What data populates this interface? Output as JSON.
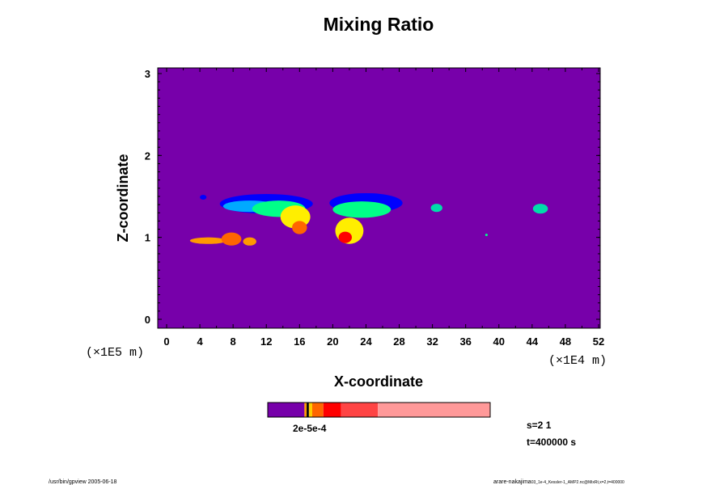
{
  "chart_data": {
    "type": "heatmap",
    "title": "Mixing Ratio",
    "xlabel": "X-coordinate",
    "ylabel": "Z-coordinate",
    "x_unit": "(×1E4 m)",
    "y_unit": "(×1E5 m)",
    "xlim": [
      0,
      52
    ],
    "ylim": [
      0,
      3
    ],
    "x_ticks": [
      "0",
      "4",
      "8",
      "12",
      "16",
      "20",
      "24",
      "28",
      "32",
      "36",
      "40",
      "44",
      "48",
      "52"
    ],
    "y_ticks": [
      "0",
      "1",
      "2",
      "3"
    ],
    "background_color": "#7700aa",
    "colorbar": {
      "label": "2e-5e-4",
      "segments": [
        {
          "from": 0,
          "to": 0.165,
          "color": "#7700aa"
        },
        {
          "from": 0.165,
          "to": 0.175,
          "color": "#ff9900"
        },
        {
          "from": 0.175,
          "to": 0.185,
          "color": "#000000"
        },
        {
          "from": 0.185,
          "to": 0.2,
          "color": "#ffcc00"
        },
        {
          "from": 0.2,
          "to": 0.25,
          "color": "#ff6600"
        },
        {
          "from": 0.25,
          "to": 0.33,
          "color": "#ff0000"
        },
        {
          "from": 0.33,
          "to": 0.495,
          "color": "#ff4444"
        },
        {
          "from": 0.495,
          "to": 1,
          "color": "#ff9999"
        }
      ]
    },
    "features": [
      {
        "x": 4.4,
        "z": 1.49,
        "rx": 0.4,
        "rz": 0.03,
        "color": "#0000ff"
      },
      {
        "x": 12,
        "z": 1.41,
        "rx": 5.6,
        "rz": 0.12,
        "color": "#0000ff"
      },
      {
        "x": 10,
        "z": 1.38,
        "rx": 3.2,
        "rz": 0.07,
        "color": "#00aaff"
      },
      {
        "x": 13.5,
        "z": 1.35,
        "rx": 3.2,
        "rz": 0.1,
        "color": "#00ff88"
      },
      {
        "x": 15.5,
        "z": 1.25,
        "rx": 1.8,
        "rz": 0.14,
        "color": "#ffee00"
      },
      {
        "x": 16,
        "z": 1.12,
        "rx": 0.9,
        "rz": 0.08,
        "color": "#ff6600"
      },
      {
        "x": 24,
        "z": 1.42,
        "rx": 4.4,
        "rz": 0.12,
        "color": "#0000ff"
      },
      {
        "x": 23.5,
        "z": 1.34,
        "rx": 3.5,
        "rz": 0.1,
        "color": "#00ff88"
      },
      {
        "x": 22,
        "z": 1.08,
        "rx": 1.7,
        "rz": 0.16,
        "color": "#ffee00"
      },
      {
        "x": 21.5,
        "z": 1.0,
        "rx": 0.8,
        "rz": 0.07,
        "color": "#ff0000"
      },
      {
        "x": 32.5,
        "z": 1.36,
        "rx": 0.7,
        "rz": 0.05,
        "color": "#00ddaa"
      },
      {
        "x": 45,
        "z": 1.35,
        "rx": 0.9,
        "rz": 0.06,
        "color": "#00ddaa"
      },
      {
        "x": 38.5,
        "z": 1.03,
        "rx": 0.15,
        "rz": 0.015,
        "color": "#00ff88"
      },
      {
        "x": 5,
        "z": 0.96,
        "rx": 2.2,
        "rz": 0.04,
        "color": "#ff9900"
      },
      {
        "x": 7.8,
        "z": 0.98,
        "rx": 1.2,
        "rz": 0.08,
        "color": "#ff6600"
      },
      {
        "x": 10,
        "z": 0.95,
        "rx": 0.8,
        "rz": 0.05,
        "color": "#ff9900"
      }
    ]
  },
  "info": {
    "s": "s=2 1",
    "t": "t=400000 s"
  },
  "footer": {
    "left": "/usr/bin/gpview 2005-06-18",
    "right": "arare-nakajima",
    "right_small": "03_1e-4_Kessler-1_AMP2.nc@MixRt,x=2,t=400000"
  }
}
